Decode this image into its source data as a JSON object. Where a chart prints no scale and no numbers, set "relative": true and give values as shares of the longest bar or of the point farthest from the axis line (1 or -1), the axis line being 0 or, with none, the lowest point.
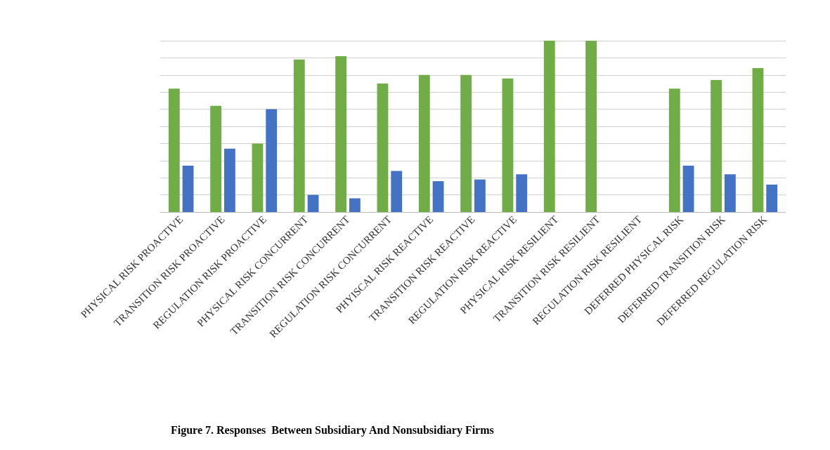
{
  "chart_data": {
    "type": "bar",
    "title": "Figure 7. Responses  Between Subsidiary And Nonsubsidiary Firms",
    "relative": true,
    "grid": "y",
    "categories": [
      "PHYSICAL RISK PROACTIVE",
      "TRANSITION RISK PROACTIVE",
      "REGULATION RISK PROACTIVE",
      "PHYSICAL RISK CONCURRENT",
      "TRANSITION RISK CONCURRENT",
      "REGULATION RISK CONCURRENT",
      "PHYISCAL RISK REACTIVE",
      "TRANSITION RISK REACTIVE",
      "REGULATION RISK REACTIVE",
      "PHYSICAL RISK RESILIENT",
      "TRANSITION RISK RESILIENT",
      "REGULATION RISK RESILIENT",
      "DEFERRED PHYSICAL RISK",
      "DEFERRED TRANSITION RISK",
      "DEFERRED REGULATION RISK"
    ],
    "series": [
      {
        "color": "#70ad47",
        "values": [
          0.72,
          0.62,
          0.4,
          0.89,
          0.91,
          0.75,
          0.8,
          0.8,
          0.78,
          1,
          1,
          0,
          0.72,
          0.77,
          0.84
        ]
      },
      {
        "color": "#4472c4",
        "values": [
          0.27,
          0.37,
          0.6,
          0.1,
          0.08,
          0.24,
          0.18,
          0.19,
          0.22,
          0,
          0,
          0,
          0.27,
          0.22,
          0.16
        ]
      }
    ]
  }
}
